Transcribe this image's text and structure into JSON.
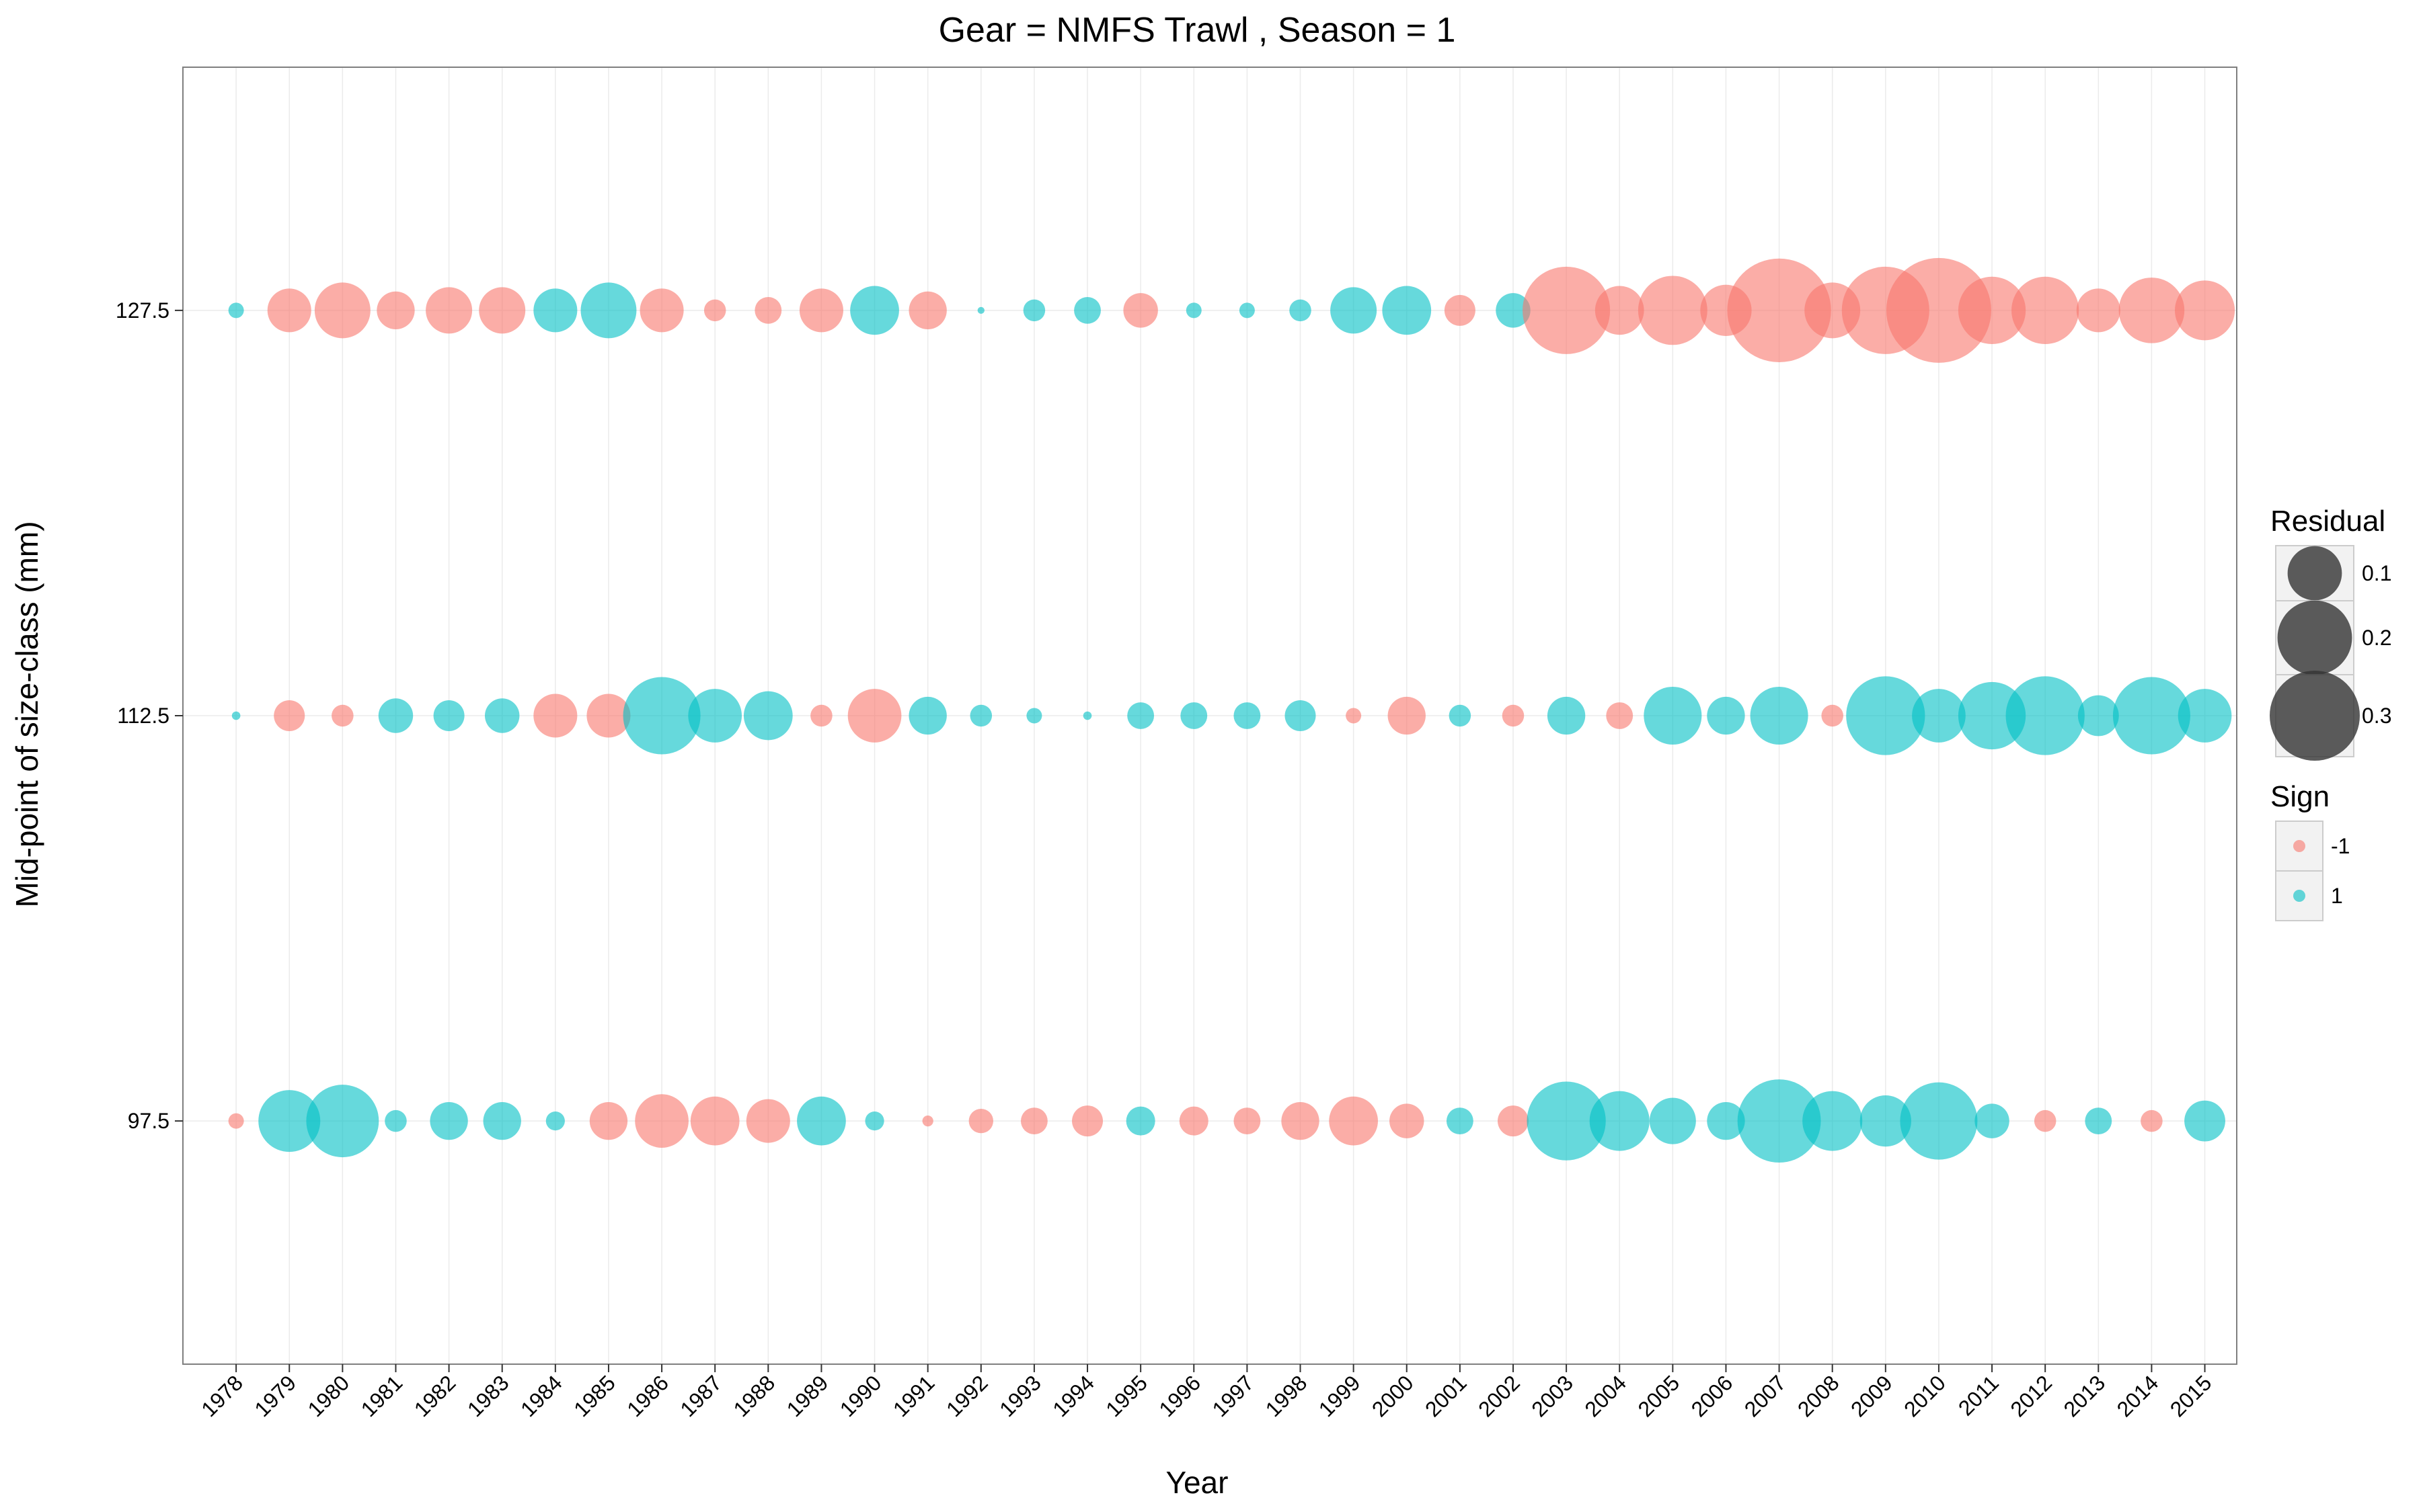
{
  "chart_data": {
    "type": "scatter",
    "title": "Gear = NMFS Trawl , Season = 1",
    "xlabel": "Year",
    "ylabel": "Mid-point of size-class (mm)",
    "x": [
      1978,
      1979,
      1980,
      1981,
      1982,
      1983,
      1984,
      1985,
      1986,
      1987,
      1988,
      1989,
      1990,
      1991,
      1992,
      1993,
      1994,
      1995,
      1996,
      1997,
      1998,
      1999,
      2000,
      2001,
      2002,
      2003,
      2004,
      2005,
      2006,
      2007,
      2008,
      2009,
      2010,
      2011,
      2012,
      2013,
      2014,
      2015
    ],
    "x_tick_labels": [
      "1978",
      "1979",
      "1980",
      "1981",
      "1982",
      "1983",
      "1984",
      "1985",
      "1986",
      "1987",
      "1988",
      "1989",
      "1990",
      "1991",
      "1992",
      "1993",
      "1994",
      "1995",
      "1996",
      "1997",
      "1998",
      "1999",
      "2000",
      "2001",
      "2002",
      "2003",
      "2004",
      "2005",
      "2006",
      "2007",
      "2008",
      "2009",
      "2010",
      "2011",
      "2012",
      "2013",
      "2014",
      "2015"
    ],
    "y_ticks": [
      97.5,
      112.5,
      127.5
    ],
    "y_tick_labels": [
      "97.5",
      "112.5",
      "127.5"
    ],
    "ylim": [
      88.5,
      136.5
    ],
    "grid": true,
    "size_classes": [
      {
        "y": 127.5,
        "residual": [
          0.01,
          0.08,
          0.13,
          0.06,
          0.09,
          0.09,
          0.08,
          0.13,
          0.08,
          0.02,
          0.03,
          0.08,
          0.1,
          0.06,
          0.002,
          0.02,
          0.03,
          0.05,
          0.01,
          0.01,
          0.02,
          0.09,
          0.1,
          0.04,
          0.05,
          0.32,
          0.1,
          0.2,
          0.11,
          0.45,
          0.13,
          0.32,
          0.46,
          0.19,
          0.19,
          0.08,
          0.18,
          0.15
        ],
        "sign": [
          1,
          -1,
          -1,
          -1,
          -1,
          -1,
          1,
          1,
          -1,
          -1,
          -1,
          -1,
          1,
          -1,
          1,
          1,
          1,
          -1,
          1,
          1,
          1,
          1,
          1,
          -1,
          1,
          -1,
          -1,
          -1,
          -1,
          -1,
          -1,
          -1,
          -1,
          -1,
          -1,
          -1,
          -1,
          -1
        ]
      },
      {
        "y": 112.5,
        "residual": [
          0.003,
          0.04,
          0.02,
          0.05,
          0.04,
          0.05,
          0.08,
          0.08,
          0.25,
          0.12,
          0.1,
          0.02,
          0.12,
          0.06,
          0.02,
          0.01,
          0.003,
          0.03,
          0.03,
          0.03,
          0.04,
          0.01,
          0.06,
          0.02,
          0.02,
          0.06,
          0.03,
          0.14,
          0.06,
          0.14,
          0.02,
          0.26,
          0.12,
          0.19,
          0.26,
          0.07,
          0.25,
          0.12
        ],
        "sign": [
          1,
          -1,
          -1,
          1,
          1,
          1,
          -1,
          -1,
          1,
          1,
          1,
          -1,
          -1,
          1,
          1,
          1,
          1,
          1,
          1,
          1,
          1,
          -1,
          -1,
          1,
          -1,
          1,
          -1,
          1,
          1,
          1,
          -1,
          1,
          1,
          1,
          1,
          1,
          1,
          1
        ]
      },
      {
        "y": 97.5,
        "residual": [
          0.01,
          0.16,
          0.22,
          0.02,
          0.06,
          0.06,
          0.015,
          0.06,
          0.12,
          0.1,
          0.08,
          0.1,
          0.015,
          0.005,
          0.025,
          0.03,
          0.04,
          0.035,
          0.035,
          0.03,
          0.06,
          0.1,
          0.05,
          0.03,
          0.04,
          0.26,
          0.15,
          0.09,
          0.06,
          0.29,
          0.15,
          0.11,
          0.25,
          0.05,
          0.02,
          0.03,
          0.02,
          0.07
        ],
        "sign": [
          -1,
          1,
          1,
          1,
          1,
          1,
          1,
          -1,
          -1,
          -1,
          -1,
          1,
          1,
          -1,
          -1,
          -1,
          -1,
          1,
          -1,
          -1,
          -1,
          -1,
          -1,
          1,
          -1,
          1,
          1,
          1,
          1,
          1,
          1,
          1,
          1,
          1,
          -1,
          1,
          -1,
          1
        ]
      }
    ],
    "legend": {
      "placement": "right",
      "size_title": "Residual",
      "size_breaks": [
        0.1,
        0.2,
        0.3
      ],
      "size_labels": [
        "0.1",
        "0.2",
        "0.3"
      ],
      "color_title": "Sign",
      "color_entries": [
        {
          "label": "-1",
          "color": "#F8766D"
        },
        {
          "label": "1",
          "color": "#00BFC4"
        }
      ]
    },
    "colors": {
      "negative": "#F8766D",
      "positive": "#00BFC4",
      "size_key_fill": "#333333",
      "grid": "#EBEBEB",
      "panel_border": "#7F7F7F"
    }
  }
}
